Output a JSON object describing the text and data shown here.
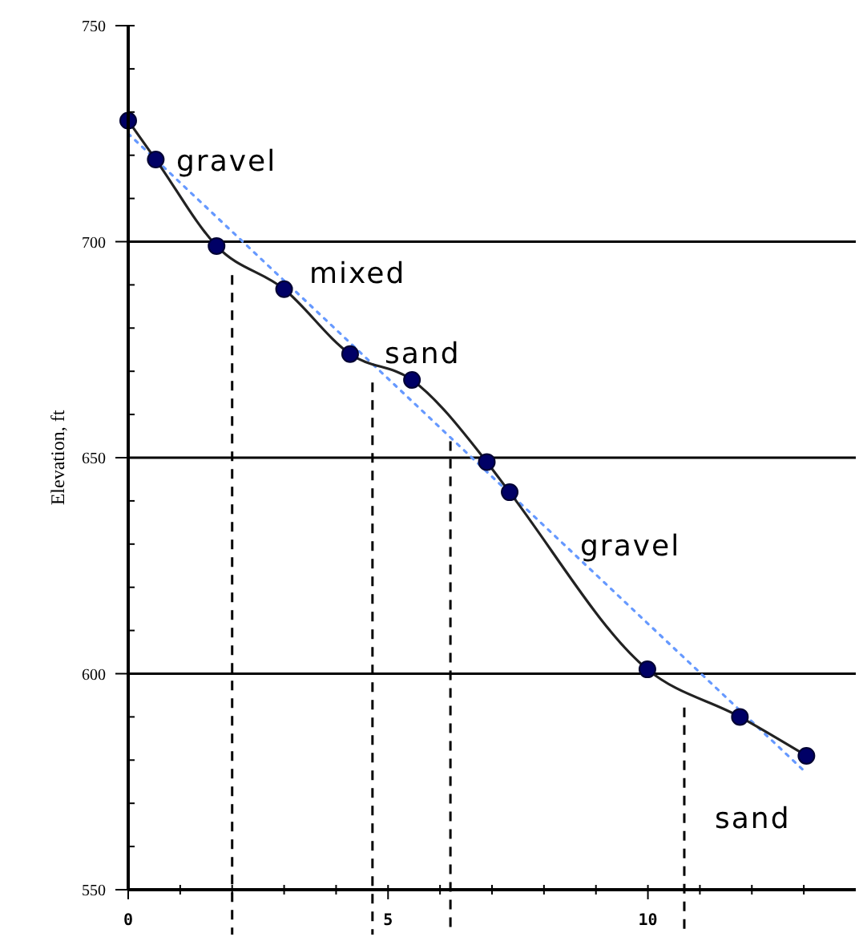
{
  "chart_data": {
    "type": "line",
    "ylabel": "Elevation, ft",
    "xlim": [
      0,
      14
    ],
    "xticks": [
      0,
      {
        "value": 1,
        "label": null
      },
      {
        "value": 2,
        "label": null
      },
      {
        "value": 3,
        "label": null
      },
      {
        "value": 4,
        "label": null
      },
      5,
      {
        "value": 6,
        "label": null
      },
      {
        "value": 7,
        "label": null
      },
      {
        "value": 8,
        "label": null
      },
      {
        "value": 9,
        "label": null
      },
      10,
      {
        "value": 11,
        "label": null
      },
      {
        "value": 12,
        "label": null
      },
      {
        "value": 13,
        "label": null
      }
    ],
    "ylim": [
      550,
      750
    ],
    "yticks": [
      550,
      {
        "value": 560,
        "label": null
      },
      {
        "value": 570,
        "label": null
      },
      {
        "value": 580,
        "label": null
      },
      {
        "value": 590,
        "label": null
      },
      600,
      {
        "value": 610,
        "label": null
      },
      {
        "value": 620,
        "label": null
      },
      {
        "value": 630,
        "label": null
      },
      {
        "value": 640,
        "label": null
      },
      650,
      {
        "value": 660,
        "label": null
      },
      {
        "value": 670,
        "label": null
      },
      {
        "value": 680,
        "label": null
      },
      {
        "value": 690,
        "label": null
      },
      700,
      {
        "value": 710,
        "label": null
      },
      {
        "value": 720,
        "label": null
      },
      {
        "value": 730,
        "label": null
      },
      {
        "value": 740,
        "label": null
      },
      750
    ],
    "grid": "y",
    "series": [
      {
        "color": "#000066",
        "marker": "circle",
        "line_style": "solid",
        "x": [
          0,
          0.53,
          1.7,
          3.0,
          4.27,
          5.46,
          6.9,
          7.34,
          9.99,
          11.77,
          13.05
        ],
        "values": [
          728,
          719,
          699,
          689,
          674,
          668,
          649,
          642,
          601,
          590,
          581
        ]
      },
      {
        "color": "#6699ff",
        "marker": "none",
        "line_style": "dotted",
        "x": [
          0,
          13.05
        ],
        "values": [
          725,
          577
        ]
      }
    ],
    "ref_lines": [
      {
        "axis": "x",
        "value": 2,
        "line_style": "dashed",
        "color": "#000000"
      },
      {
        "axis": "x",
        "value": 4.7,
        "line_style": "dashed",
        "color": "#000000"
      },
      {
        "axis": "x",
        "value": 6.2,
        "line_style": "dashed",
        "color": "#000000"
      },
      {
        "axis": "x",
        "value": 10.7,
        "line_style": "dashed",
        "color": "#000000"
      }
    ],
    "annotations": [
      "gravel",
      "mixed",
      "sand",
      "gravel",
      "sand"
    ]
  }
}
